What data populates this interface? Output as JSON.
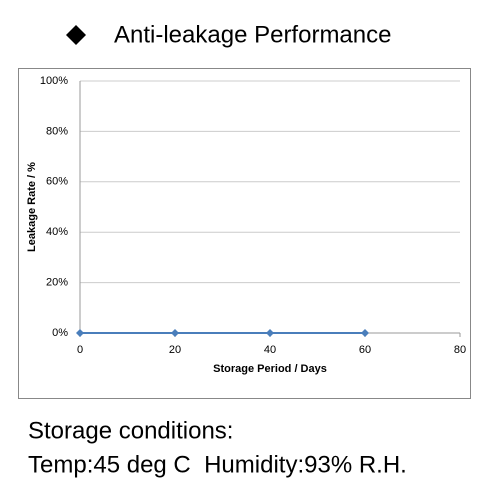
{
  "chart_data": {
    "type": "line",
    "title": "Anti-leakage Performance",
    "x": [
      0,
      20,
      40,
      60
    ],
    "series": [
      {
        "color": "#4a7ebb",
        "values": [
          0,
          0,
          0,
          0
        ]
      }
    ],
    "xlim": [
      0,
      80
    ],
    "xticks": [
      0,
      20,
      40,
      60,
      80
    ],
    "ylim": [
      0,
      100
    ],
    "yticks": [
      {
        "value": 0,
        "label": "0%"
      },
      {
        "value": 20,
        "label": "20%"
      },
      {
        "value": 40,
        "label": "40%"
      },
      {
        "value": 60,
        "label": "60%"
      },
      {
        "value": 80,
        "label": "80%"
      },
      {
        "value": 100,
        "label": "100%"
      }
    ],
    "xlabel": "Storage Period / Days",
    "ylabel": "Leakage Rate / %",
    "grid": true,
    "notes": [
      "Storage conditions:",
      "Temp:45 deg C  Humidity:93% R.H."
    ]
  }
}
